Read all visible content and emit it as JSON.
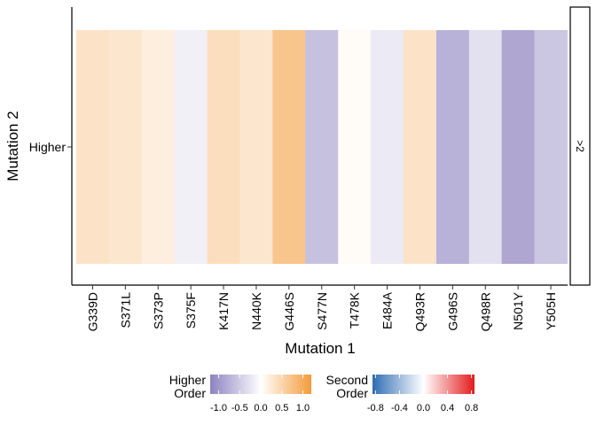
{
  "chart_data": {
    "type": "heatmap",
    "xlabel": "Mutation 1",
    "ylabel": "Mutation 2",
    "x_categories": [
      "G339D",
      "S371L",
      "S373P",
      "S375F",
      "K417N",
      "N440K",
      "G446S",
      "S477N",
      "T478K",
      "E484A",
      "Q493R",
      "G496S",
      "Q498R",
      "N501Y",
      "Y505H"
    ],
    "y_categories": [
      "Higher"
    ],
    "facet_label": ">2",
    "values": [
      0.35,
      0.3,
      0.2,
      -0.15,
      0.4,
      0.3,
      0.7,
      -0.6,
      0.05,
      -0.2,
      0.35,
      -0.75,
      -0.3,
      -0.85,
      -0.55
    ],
    "legends": [
      {
        "title_lines": [
          "Higher",
          "Order"
        ],
        "ticks": [
          -1.0,
          -0.5,
          0.0,
          0.5,
          1.0
        ],
        "tick_labels": [
          "-1.0",
          "-0.5",
          "0.0",
          "0.5",
          "1.0"
        ],
        "range": [
          -1.2,
          1.2
        ],
        "low_color": "#8e83c0",
        "mid_color": "#ffffff",
        "high_color": "#f39b3a"
      },
      {
        "title_lines": [
          "Second",
          "Order"
        ],
        "ticks": [
          -0.8,
          -0.4,
          0.0,
          0.4,
          0.8
        ],
        "tick_labels": [
          "-0.8",
          "-0.4",
          "0.0",
          "0.4",
          "0.8"
        ],
        "range": [
          -0.85,
          0.85
        ],
        "low_color": "#2f6db4",
        "mid_color": "#ffffff",
        "high_color": "#e41a1c"
      }
    ]
  }
}
